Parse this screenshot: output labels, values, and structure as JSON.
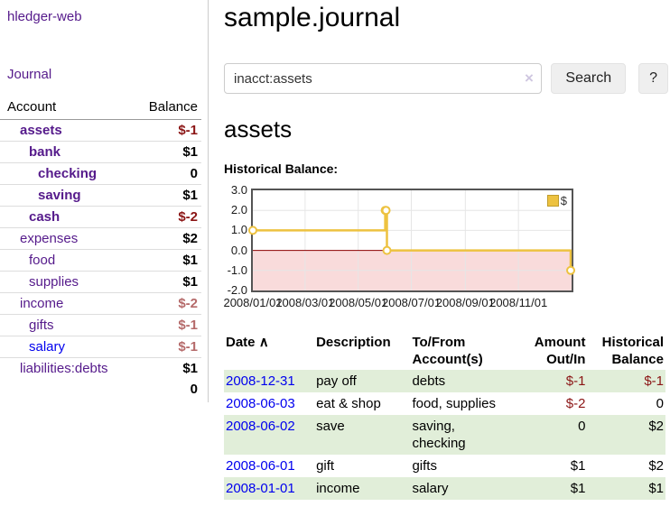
{
  "sidebar": {
    "app_title": "hledger-web",
    "nav": {
      "journal_label": "Journal"
    },
    "accounts_table": {
      "headers": {
        "account": "Account",
        "balance": "Balance"
      },
      "rows": [
        {
          "name": "assets",
          "balance": "$-1",
          "level": 1,
          "in_focus": true,
          "balance_style": "negative"
        },
        {
          "name": "bank",
          "balance": "$1",
          "level": 2,
          "in_focus": true,
          "balance_style": "normal"
        },
        {
          "name": "checking",
          "balance": "0",
          "level": 3,
          "in_focus": true,
          "balance_style": "normal"
        },
        {
          "name": "saving",
          "balance": "$1",
          "level": 3,
          "in_focus": true,
          "balance_style": "normal"
        },
        {
          "name": "cash",
          "balance": "$-2",
          "level": 2,
          "in_focus": true,
          "balance_style": "negative"
        },
        {
          "name": "expenses",
          "balance": "$2",
          "level": 1,
          "in_focus": false,
          "balance_style": "normal"
        },
        {
          "name": "food",
          "balance": "$1",
          "level": 2,
          "in_focus": false,
          "balance_style": "normal"
        },
        {
          "name": "supplies",
          "balance": "$1",
          "level": 2,
          "in_focus": false,
          "balance_style": "normal"
        },
        {
          "name": "income",
          "balance": "$-2",
          "level": 1,
          "in_focus": false,
          "balance_style": "negative-faded"
        },
        {
          "name": "gifts",
          "balance": "$-1",
          "level": 2,
          "in_focus": false,
          "balance_style": "negative-faded"
        },
        {
          "name": "salary",
          "balance": "$-1",
          "level": 2,
          "in_focus": false,
          "balance_style": "negative-faded",
          "link_style": "blue"
        },
        {
          "name": "liabilities:debts",
          "balance": "$1",
          "level": 1,
          "in_focus": false,
          "balance_style": "normal"
        }
      ],
      "total": "0"
    }
  },
  "header": {
    "title": "sample.journal"
  },
  "search": {
    "value": "inacct:assets",
    "clear_icon": "×",
    "search_label": "Search",
    "help_label": "?"
  },
  "account_page": {
    "title": "assets",
    "chart_label": "Historical Balance:"
  },
  "chart_data": {
    "type": "line",
    "title": "Historical Balance:",
    "xlim": [
      "2008-01-01",
      "2008-12-31"
    ],
    "ylim": [
      -2,
      3
    ],
    "y_ticks": [
      3.0,
      2.0,
      1.0,
      0.0,
      -1.0,
      -2.0
    ],
    "x_ticks": [
      "2008/01/01",
      "2008/03/01",
      "2008/05/01",
      "2008/07/01",
      "2008/09/01",
      "2008/11/01"
    ],
    "grid": true,
    "grid_color": "#e6e6e6",
    "zero_line_color": "#8b0000",
    "negative_region_color": "#f9dbdb",
    "legend_position": "top-right",
    "series": [
      {
        "name": "$",
        "color": "#edc240",
        "step": true,
        "points": [
          [
            "2008-01-01",
            1
          ],
          [
            "2008-06-01",
            2
          ],
          [
            "2008-06-02",
            2
          ],
          [
            "2008-06-03",
            0
          ],
          [
            "2008-12-31",
            -1
          ]
        ]
      }
    ]
  },
  "register": {
    "headers": {
      "date": "Date",
      "sort_icon": "∧",
      "description": "Description",
      "accounts": "To/From Account(s)",
      "amount": "Amount Out/In",
      "balance": "Historical Balance"
    },
    "rows": [
      {
        "date": "2008-12-31",
        "description": "pay off",
        "accounts": "debts",
        "amount": "$-1",
        "amount_negative": true,
        "balance": "$-1",
        "balance_negative": true
      },
      {
        "date": "2008-06-03",
        "description": "eat & shop",
        "accounts": "food, supplies",
        "amount": "$-2",
        "amount_negative": true,
        "balance": "0",
        "balance_negative": false
      },
      {
        "date": "2008-06-02",
        "description": "save",
        "accounts": "saving, checking",
        "amount": "0",
        "amount_negative": false,
        "balance": "$2",
        "balance_negative": false
      },
      {
        "date": "2008-06-01",
        "description": "gift",
        "accounts": "gifts",
        "amount": "$1",
        "amount_negative": false,
        "balance": "$2",
        "balance_negative": false
      },
      {
        "date": "2008-01-01",
        "description": "income",
        "accounts": "salary",
        "amount": "$1",
        "amount_negative": false,
        "balance": "$1",
        "balance_negative": false
      }
    ]
  },
  "colors": {
    "accent_purple": "#551a8b",
    "link_blue": "#0000ee",
    "negative_strong": "#8b1515",
    "negative_faded": "#b56a6a",
    "stripe_green": "#e1eed9",
    "chart_line": "#edc240",
    "chart_border": "#545454"
  }
}
